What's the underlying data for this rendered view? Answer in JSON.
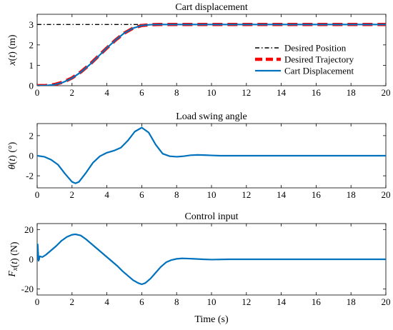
{
  "figure": {
    "x_range": [
      0,
      20
    ],
    "x_ticks": [
      0,
      2,
      4,
      6,
      8,
      10,
      12,
      14,
      16,
      18,
      20
    ],
    "x_tick_labels": [
      "0",
      "2",
      "4",
      "6",
      "8",
      "10",
      "12",
      "14",
      "16",
      "18",
      "20"
    ],
    "xlabel": "Time (s)",
    "colors": {
      "desired_position": "#000000",
      "desired_trajectory": "#ff0000",
      "cart_displacement": "#0072bd",
      "swing_angle": "#0072bd",
      "control_input": "#0072bd"
    }
  },
  "chart_data": [
    {
      "type": "line",
      "title": "Cart displacement",
      "ylabel": "x(t) (m)",
      "ylim": [
        0,
        3.5
      ],
      "y_ticks": [
        0,
        1,
        2,
        3
      ],
      "y_tick_labels": [
        "0",
        "1",
        "2",
        "3"
      ],
      "legend_position": "bottom-right",
      "series": [
        {
          "name": "Desired Position",
          "style": "dash-dot",
          "x": [
            0,
            20
          ],
          "y": [
            3,
            3
          ]
        },
        {
          "name": "Desired Trajectory",
          "style": "dashed",
          "x": [
            0,
            0.5,
            1,
            1.5,
            2,
            2.5,
            3,
            3.5,
            4,
            4.5,
            5,
            5.5,
            6,
            6.5,
            7,
            7.5,
            20
          ],
          "y": [
            0,
            0.01,
            0.06,
            0.18,
            0.38,
            0.67,
            1.03,
            1.44,
            1.85,
            2.24,
            2.58,
            2.82,
            2.95,
            2.99,
            3.0,
            3.0,
            3.0
          ]
        },
        {
          "name": "Cart Displacement",
          "style": "solid",
          "x": [
            0,
            0.5,
            1,
            1.5,
            2,
            2.5,
            3,
            3.5,
            4,
            4.5,
            5,
            5.5,
            6,
            6.5,
            7,
            7.5,
            8,
            8.5,
            9,
            20
          ],
          "y": [
            0,
            0.01,
            0.05,
            0.17,
            0.37,
            0.66,
            1.02,
            1.43,
            1.85,
            2.24,
            2.58,
            2.82,
            2.95,
            2.99,
            3.0,
            3.0,
            3.0,
            3.0,
            3.0,
            3.0
          ]
        }
      ]
    },
    {
      "type": "line",
      "title": "Load swing angle",
      "ylabel": "θ(t) (°)",
      "ylim": [
        -3.2,
        3.2
      ],
      "y_ticks": [
        -2,
        0,
        2
      ],
      "y_tick_labels": [
        "-2",
        "0",
        "2"
      ],
      "series": [
        {
          "style": "solid",
          "x": [
            0,
            0.4,
            0.8,
            1.2,
            1.6,
            2.0,
            2.2,
            2.4,
            2.8,
            3.2,
            3.6,
            4.0,
            4.4,
            4.8,
            5.2,
            5.6,
            6.0,
            6.4,
            6.8,
            7.2,
            7.6,
            8.0,
            8.4,
            8.8,
            9.2,
            9.6,
            10.0,
            10.5,
            11,
            20
          ],
          "y": [
            0.0,
            -0.1,
            -0.4,
            -0.9,
            -1.8,
            -2.6,
            -2.75,
            -2.6,
            -1.7,
            -0.7,
            -0.05,
            0.3,
            0.5,
            0.8,
            1.5,
            2.4,
            2.8,
            2.3,
            1.1,
            0.2,
            -0.05,
            -0.1,
            -0.05,
            0.05,
            0.08,
            0.06,
            0.03,
            0.0,
            0.0,
            0.0
          ]
        }
      ]
    },
    {
      "type": "line",
      "title": "Control input",
      "ylabel": "Fx(t) (N)",
      "ylim": [
        -24,
        24
      ],
      "y_ticks": [
        -20,
        0,
        20
      ],
      "y_tick_labels": [
        "-20",
        "0",
        "20"
      ],
      "series": [
        {
          "style": "solid",
          "x": [
            0,
            0.03,
            0.08,
            0.15,
            0.3,
            0.5,
            0.8,
            1.1,
            1.4,
            1.7,
            2.0,
            2.2,
            2.5,
            2.8,
            3.1,
            3.4,
            3.7,
            4.0,
            4.3,
            4.6,
            4.9,
            5.2,
            5.5,
            5.8,
            6.0,
            6.2,
            6.5,
            6.8,
            7.1,
            7.4,
            7.7,
            8.0,
            8.3,
            8.6,
            9.0,
            9.5,
            10.0,
            11.0,
            20
          ],
          "y": [
            0,
            10,
            -1,
            2,
            1.5,
            3,
            6,
            9,
            12.5,
            15,
            16.5,
            16.8,
            16,
            13.5,
            10.5,
            7.5,
            4.5,
            1.5,
            -1.5,
            -4.5,
            -8,
            -11,
            -14,
            -16,
            -16.8,
            -16,
            -13,
            -9,
            -5,
            -2,
            -0.5,
            0.3,
            0.6,
            0.5,
            0.3,
            0,
            -0.2,
            0,
            0
          ]
        }
      ]
    }
  ]
}
